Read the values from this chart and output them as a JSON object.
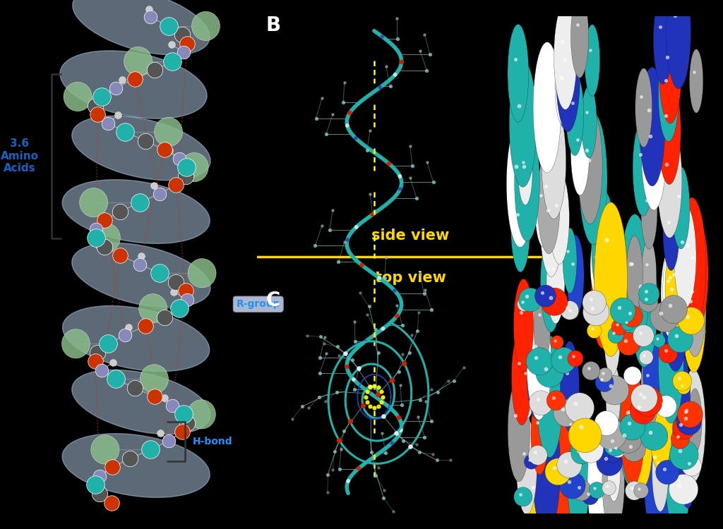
{
  "background_color": "#000000",
  "panel_A_bg": "#ffffff",
  "text_3_6": "3.6\nAmino\nAcids",
  "text_3_6_color": "#1565C0",
  "text_rgroup": "R-group",
  "text_rgroup_color": "#1E90FF",
  "text_hbond": "H-bond",
  "text_hbond_color": "#1E90FF",
  "text_side_view": "side view",
  "text_top_view": "top view",
  "text_yellow_color": "#FFD700",
  "divider_color": "#FFD700",
  "panel_B_label": "B",
  "panel_C_label": "C",
  "label_color": "#ffffff",
  "helix_ribbon_color": "#20B2AA",
  "helix_ribbon_lw": 4.0,
  "ribbon_bg_color": "#b8d4ee",
  "ribbon_bg_alpha": 0.5,
  "atom_N_color": "#8888BB",
  "atom_Ca_color": "#20B2AA",
  "atom_C_color": "#555555",
  "atom_O_color": "#CC3300",
  "atom_R_color": "#88BB88",
  "atom_H_color": "#cccccc",
  "hbond_color": "#CC3300",
  "sf_colors_B": [
    "#20B2AA",
    "#20B2AA",
    "#FFFFFF",
    "#FFFFFF",
    "#FF2200",
    "#2222AA",
    "#FFD700",
    "#AAAAAA",
    "#20B2AA",
    "#FFFFFF",
    "#FF2200",
    "#2222AA"
  ],
  "sf_colors_C": [
    "#20B2AA",
    "#20B2AA",
    "#FFFFFF",
    "#FFFFFF",
    "#FF2200",
    "#2222AA",
    "#FFD700",
    "#AAAAAA",
    "#20B2AA",
    "#FFFFFF",
    "#FF2200",
    "#2222AA"
  ],
  "stick_color_B": "#20B2AA",
  "hbond_yellow": "#FFFF00",
  "side_chain_color": "#88CCCC"
}
